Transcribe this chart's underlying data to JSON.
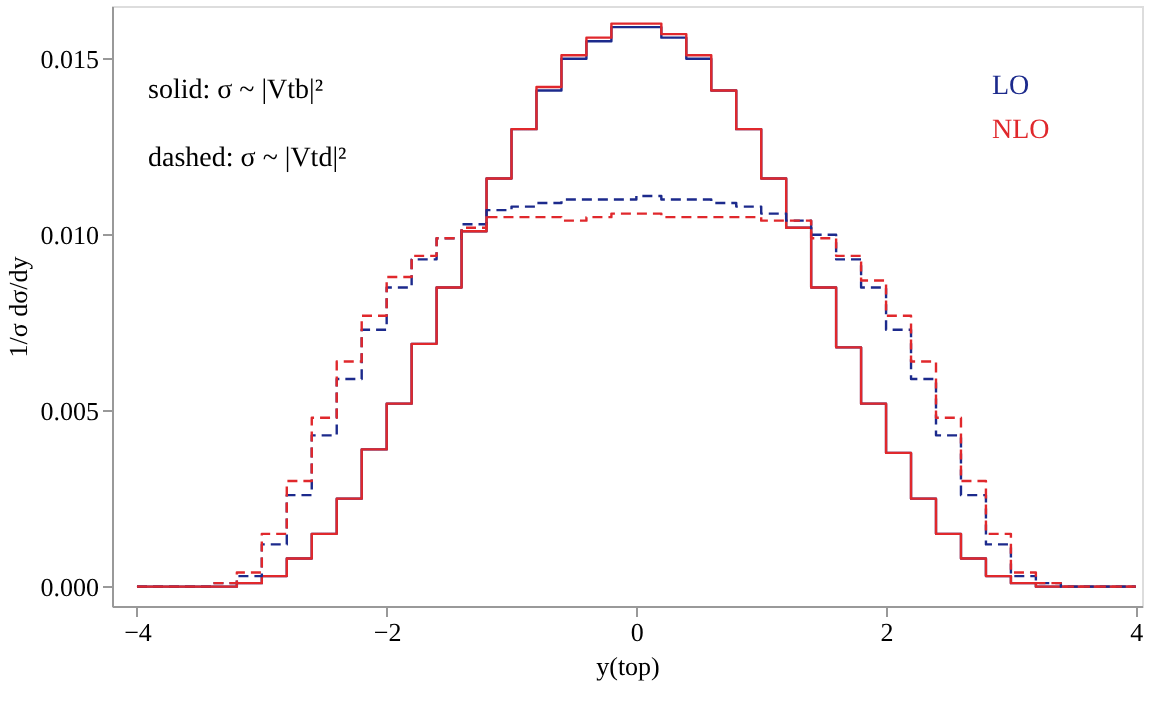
{
  "chart_data": {
    "type": "histogram",
    "xlabel": "y(top)",
    "ylabel": "1/σ dσ/dy",
    "bins": [
      -4.0,
      -3.8,
      -3.6,
      -3.4,
      -3.2,
      -3.0,
      -2.8,
      -2.6,
      -2.4,
      -2.2,
      -2.0,
      -1.8,
      -1.6,
      -1.4,
      -1.2,
      -1.0,
      -0.8,
      -0.6,
      -0.4,
      -0.2,
      0.0,
      0.2,
      0.4,
      0.6,
      0.8,
      1.0,
      1.2,
      1.4,
      1.6,
      1.8,
      2.0,
      2.2,
      2.4,
      2.6,
      2.8,
      3.0,
      3.2,
      3.4,
      3.6,
      3.8,
      4.0
    ],
    "series": [
      {
        "name": "LO",
        "color": "#1c2a8c",
        "line_style": "solid",
        "values": [
          0,
          0,
          0,
          0,
          0.0001,
          0.0003,
          0.0008,
          0.0015,
          0.0025,
          0.0039,
          0.0052,
          0.0069,
          0.0085,
          0.0101,
          0.0116,
          0.013,
          0.0141,
          0.015,
          0.0155,
          0.0159,
          0.0159,
          0.0156,
          0.015,
          0.0141,
          0.013,
          0.0116,
          0.0102,
          0.0085,
          0.0068,
          0.0052,
          0.0038,
          0.0025,
          0.0015,
          0.0008,
          0.0003,
          0.0001,
          0,
          0,
          0,
          0
        ]
      },
      {
        "name": "NLO",
        "color": "#e0282c",
        "line_style": "solid",
        "values": [
          0,
          0,
          0,
          0,
          0.0001,
          0.0003,
          0.0008,
          0.0015,
          0.0025,
          0.0039,
          0.0052,
          0.0069,
          0.0085,
          0.0101,
          0.0116,
          0.013,
          0.0142,
          0.0151,
          0.0156,
          0.016,
          0.016,
          0.0157,
          0.0151,
          0.0141,
          0.013,
          0.0116,
          0.0102,
          0.0085,
          0.0068,
          0.0052,
          0.0038,
          0.0025,
          0.0015,
          0.0008,
          0.0003,
          0.0001,
          0,
          0,
          0,
          0
        ]
      },
      {
        "color": "#1c2a8c",
        "line_style": "dashed",
        "values": [
          0,
          0,
          0,
          0.0001,
          0.0003,
          0.0012,
          0.0026,
          0.0043,
          0.0059,
          0.0073,
          0.0085,
          0.0093,
          0.0099,
          0.0103,
          0.0107,
          0.0108,
          0.0109,
          0.011,
          0.011,
          0.011,
          0.0111,
          0.011,
          0.011,
          0.0109,
          0.0108,
          0.0106,
          0.0104,
          0.01,
          0.0093,
          0.0085,
          0.0073,
          0.0059,
          0.0043,
          0.0026,
          0.0012,
          0.0003,
          0.0001,
          0,
          0,
          0
        ]
      },
      {
        "color": "#e0282c",
        "line_style": "dashed",
        "values": [
          0,
          0,
          0,
          0.0001,
          0.0004,
          0.0015,
          0.003,
          0.0048,
          0.0064,
          0.0077,
          0.0088,
          0.0094,
          0.0099,
          0.0102,
          0.0105,
          0.0105,
          0.0105,
          0.0104,
          0.0105,
          0.0106,
          0.0106,
          0.0105,
          0.0105,
          0.0105,
          0.0105,
          0.0104,
          0.0104,
          0.0099,
          0.0094,
          0.0087,
          0.0077,
          0.0064,
          0.0048,
          0.003,
          0.0015,
          0.0004,
          0.0001,
          0,
          0,
          0
        ]
      }
    ],
    "xlim": [
      -4.2,
      4.05
    ],
    "xticks": [
      -4,
      -2,
      0,
      2,
      4
    ],
    "ylim": [
      -0.00055,
      0.0165
    ],
    "yticks": [
      {
        "value": 0,
        "label": "0.000"
      },
      {
        "value": 0.005,
        "label": "0.005"
      },
      {
        "value": 0.01,
        "label": "0.010"
      },
      {
        "value": 0.015,
        "label": "0.015"
      }
    ],
    "legend": "top right",
    "annotations": [
      "solid: σ ~ |Vtb|²",
      "dashed: σ ~ |Vtd|²"
    ]
  }
}
